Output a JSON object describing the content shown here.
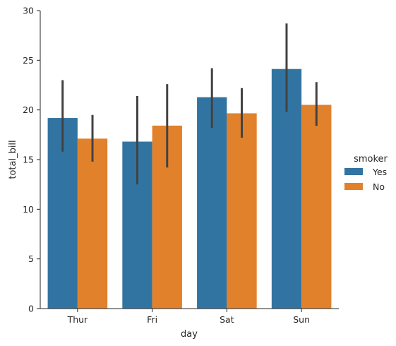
{
  "chart_data": {
    "type": "bar",
    "title": "",
    "xlabel": "day",
    "ylabel": "total_bill",
    "categories": [
      "Thur",
      "Fri",
      "Sat",
      "Sun"
    ],
    "ylim": [
      0,
      30
    ],
    "yticks": [
      0,
      5,
      10,
      15,
      20,
      25,
      30
    ],
    "grid": false,
    "legend": {
      "title": "smoker",
      "position": "right"
    },
    "series": [
      {
        "name": "Yes",
        "color": "#3274a1",
        "values": [
          19.19,
          16.81,
          21.28,
          24.12
        ],
        "ci_low": [
          15.8,
          12.5,
          18.2,
          19.8
        ],
        "ci_high": [
          23.0,
          21.4,
          24.2,
          28.7
        ]
      },
      {
        "name": "No",
        "color": "#e1812c",
        "values": [
          17.11,
          18.42,
          19.66,
          20.51
        ],
        "ci_low": [
          14.8,
          14.2,
          17.2,
          18.4
        ],
        "ci_high": [
          19.5,
          22.6,
          22.2,
          22.8
        ]
      }
    ],
    "errorbar_color": "#424242"
  }
}
